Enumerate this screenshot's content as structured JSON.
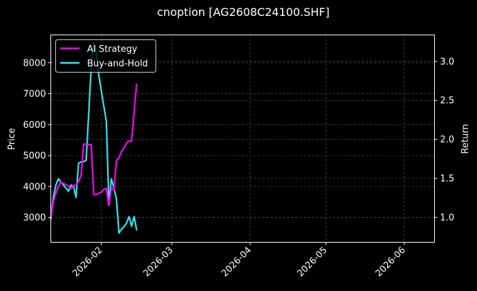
{
  "chart_data": {
    "type": "line",
    "title": "cnoption [AG2608C24100.SHF]",
    "xlabel": "",
    "ylabel": "Price",
    "ylabel_right": "Return",
    "x_ticks": [
      "2026-02",
      "2026-03",
      "2026-04",
      "2026-05",
      "2026-06"
    ],
    "x_tick_dates": [
      "2026-02-01",
      "2026-03-01",
      "2026-04-01",
      "2026-05-01",
      "2026-06-01"
    ],
    "xlim": [
      "2026-01-12",
      "2026-06-13"
    ],
    "y_left_ticks": [
      3000,
      4000,
      5000,
      6000,
      7000,
      8000
    ],
    "ylim_left": [
      2200,
      8900
    ],
    "y_right_ticks": [
      "1.0",
      "1.5",
      "2.0",
      "2.5",
      "3.0"
    ],
    "ylim_right": [
      0.68,
      3.34
    ],
    "grid": true,
    "legend_position": "top-left",
    "series": [
      {
        "name": "AI Strategy",
        "axis": "right",
        "color": "#ff00ff",
        "points": [
          [
            "2026-01-12",
            1.0
          ],
          [
            "2026-01-13",
            1.2
          ],
          [
            "2026-01-14",
            1.31
          ],
          [
            "2026-01-15",
            1.4
          ],
          [
            "2026-01-16",
            1.45
          ],
          [
            "2026-01-19",
            1.4
          ],
          [
            "2026-01-20",
            1.37
          ],
          [
            "2026-01-21",
            1.41
          ],
          [
            "2026-01-22",
            1.41
          ],
          [
            "2026-01-23",
            1.46
          ],
          [
            "2026-01-24",
            1.54
          ],
          [
            "2026-01-25",
            1.94
          ],
          [
            "2026-01-28",
            1.93
          ],
          [
            "2026-01-29",
            1.29
          ],
          [
            "2026-01-30",
            1.29
          ],
          [
            "2026-01-31",
            1.31
          ],
          [
            "2026-02-01",
            1.32
          ],
          [
            "2026-02-02",
            1.36
          ],
          [
            "2026-02-03",
            1.37
          ],
          [
            "2026-02-04",
            1.15
          ],
          [
            "2026-02-05",
            1.38
          ],
          [
            "2026-02-06",
            1.35
          ],
          [
            "2026-02-07",
            1.73
          ],
          [
            "2026-02-08",
            1.76
          ],
          [
            "2026-02-09",
            1.85
          ],
          [
            "2026-02-10",
            1.89
          ],
          [
            "2026-02-11",
            1.95
          ],
          [
            "2026-02-12",
            1.98
          ],
          [
            "2026-02-13",
            1.98
          ],
          [
            "2026-02-15",
            2.71
          ]
        ]
      },
      {
        "name": "Buy-and-Hold",
        "axis": "left",
        "color": "#2ee8f0",
        "points": [
          [
            "2026-01-12",
            2950
          ],
          [
            "2026-01-13",
            3650
          ],
          [
            "2026-01-14",
            4050
          ],
          [
            "2026-01-15",
            4250
          ],
          [
            "2026-01-16",
            4150
          ],
          [
            "2026-01-17",
            4050
          ],
          [
            "2026-01-19",
            3850
          ],
          [
            "2026-01-20",
            4050
          ],
          [
            "2026-01-21",
            4000
          ],
          [
            "2026-01-22",
            3650
          ],
          [
            "2026-01-23",
            4750
          ],
          [
            "2026-01-24",
            4800
          ],
          [
            "2026-01-25",
            4800
          ],
          [
            "2026-01-26",
            4850
          ],
          [
            "2026-01-28",
            7850
          ],
          [
            "2026-01-29",
            8650
          ],
          [
            "2026-01-30",
            8300
          ],
          [
            "2026-01-31",
            7600
          ],
          [
            "2026-02-02",
            6600
          ],
          [
            "2026-02-03",
            6100
          ],
          [
            "2026-02-04",
            3450
          ],
          [
            "2026-02-05",
            4250
          ],
          [
            "2026-02-06",
            3950
          ],
          [
            "2026-02-07",
            3600
          ],
          [
            "2026-02-08",
            2500
          ],
          [
            "2026-02-09",
            2620
          ],
          [
            "2026-02-10",
            2700
          ],
          [
            "2026-02-11",
            2820
          ],
          [
            "2026-02-12",
            3030
          ],
          [
            "2026-02-13",
            2720
          ],
          [
            "2026-02-14",
            3030
          ],
          [
            "2026-02-15",
            2600
          ]
        ]
      }
    ]
  }
}
